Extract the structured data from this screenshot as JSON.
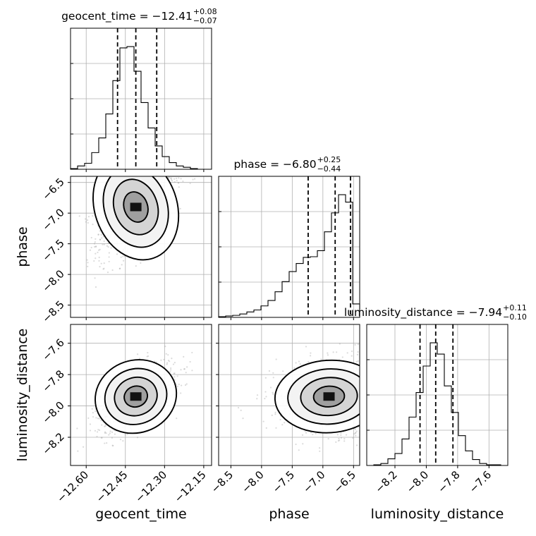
{
  "chart_data": {
    "type": "corner",
    "parameters": [
      "geocent_time",
      "phase",
      "luminosity_distance"
    ],
    "axis_labels": [
      "geocent_time",
      "phase",
      "luminosity_distance"
    ],
    "ranges": {
      "geocent_time": [
        -12.66,
        -12.12
      ],
      "phase": [
        -8.7,
        -6.4
      ],
      "luminosity_distance": [
        -8.38,
        -7.48
      ]
    },
    "ticks": {
      "geocent_time": {
        "values": [
          -12.6,
          -12.45,
          -12.3,
          -12.15
        ],
        "labels": [
          "−12.60",
          "−12.45",
          "−12.30",
          "−12.15"
        ]
      },
      "phase": {
        "values": [
          -8.5,
          -8.0,
          -7.5,
          -7.0,
          -6.5
        ],
        "labels": [
          "−8.5",
          "−8.0",
          "−7.5",
          "−7.0",
          "−6.5"
        ]
      },
      "luminosity_distance": {
        "values": [
          -8.2,
          -8.0,
          -7.8,
          -7.6
        ],
        "labels": [
          "−8.2",
          "−8.0",
          "−7.8",
          "−7.6"
        ]
      }
    },
    "titles": [
      {
        "param": "geocent_time",
        "text": "geocent_time = −12.41",
        "sup": "+0.08",
        "sub": "−0.07"
      },
      {
        "param": "phase",
        "text": "phase = −6.80",
        "sup": "+0.25",
        "sub": "−0.44"
      },
      {
        "param": "luminosity_distance",
        "text": "luminosity_distance = −7.94",
        "sup": "+0.11",
        "sub": "−0.10"
      }
    ],
    "quantiles": {
      "geocent_time": [
        -12.48,
        -12.41,
        -12.33
      ],
      "phase": [
        -7.24,
        -6.8,
        -6.55
      ],
      "luminosity_distance": [
        -8.04,
        -7.94,
        -7.83
      ]
    },
    "histograms": {
      "geocent_time": {
        "edges": [
          -12.66,
          -12.633,
          -12.606,
          -12.579,
          -12.552,
          -12.525,
          -12.498,
          -12.471,
          -12.444,
          -12.417,
          -12.39,
          -12.363,
          -12.336,
          -12.309,
          -12.282,
          -12.255,
          -12.228,
          -12.201,
          -12.174,
          -12.147,
          -12.12
        ],
        "counts": [
          1,
          5,
          9,
          25,
          47,
          83,
          133,
          182,
          184,
          147,
          100,
          62,
          35,
          19,
          10,
          5,
          3,
          1,
          0,
          0
        ]
      },
      "phase": {
        "edges": [
          -8.7,
          -8.585,
          -8.47,
          -8.355,
          -8.24,
          -8.125,
          -8.01,
          -7.895,
          -7.78,
          -7.665,
          -7.55,
          -7.435,
          -7.32,
          -7.205,
          -7.09,
          -6.975,
          -6.86,
          -6.745,
          -6.63,
          -6.515,
          -6.4
        ],
        "counts": [
          1,
          2,
          3,
          5,
          8,
          11,
          17,
          25,
          38,
          53,
          68,
          80,
          89,
          90,
          99,
          127,
          155,
          182,
          171,
          20
        ]
      },
      "luminosity_distance": {
        "edges": [
          -8.38,
          -8.335,
          -8.29,
          -8.245,
          -8.2,
          -8.155,
          -8.11,
          -8.065,
          -8.02,
          -7.975,
          -7.93,
          -7.885,
          -7.84,
          -7.795,
          -7.75,
          -7.705,
          -7.66,
          -7.615,
          -7.57,
          -7.525,
          -7.48
        ],
        "counts": [
          0,
          1,
          3,
          10,
          18,
          40,
          73,
          110,
          150,
          185,
          168,
          120,
          80,
          45,
          22,
          9,
          3,
          1,
          1,
          0
        ]
      }
    }
  }
}
